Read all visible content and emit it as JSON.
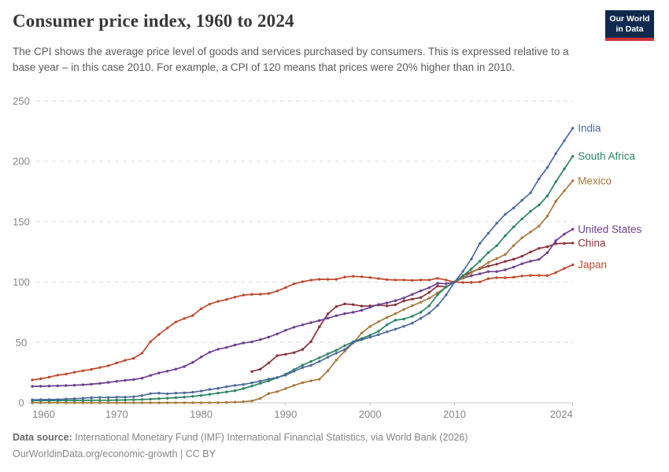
{
  "header": {
    "title": "Consumer price index, 1960 to 2024",
    "subtitle": "The CPI shows the average price level of goods and services purchased by consumers. This is expressed relative to a base year – in this case 2010. For example, a CPI of 120 means that prices were 20% higher than in 2010.",
    "logo": {
      "line1": "Our World",
      "line2": "in Data",
      "bg_color": "#102a4e",
      "accent_color": "#cf3235"
    }
  },
  "footer": {
    "source_label": "Data source:",
    "source_text": " International Monetary Fund (IMF) International Financial Statistics, via World Bank (2026)",
    "link_text": "OurWorldinData.org/economic-growth",
    "license_text": " | CC BY"
  },
  "chart_data": {
    "type": "line",
    "title": "Consumer price index, 1960 to 2024",
    "xlabel": "",
    "ylabel": "",
    "ylim": [
      0,
      250
    ],
    "yticks": [
      0,
      50,
      100,
      150,
      200,
      250
    ],
    "xticks": [
      1960,
      1970,
      1980,
      1990,
      2000,
      2010,
      2024
    ],
    "grid": "horizontal-dashed",
    "legend": "end-of-line-labels",
    "x_start": 1960,
    "x_end": 2024,
    "axis_color": "#c8c8c8",
    "grid_color": "#dcdcdc",
    "tick_label_color": "#858585",
    "series": [
      {
        "name": "India",
        "color": "#4C6A9C",
        "values": [
          2.5,
          2.6,
          2.65,
          2.7,
          3.1,
          3.4,
          3.8,
          4.25,
          4.4,
          4.35,
          4.6,
          4.7,
          5.0,
          5.9,
          7.6,
          8.0,
          7.4,
          8.0,
          8.2,
          8.7,
          9.7,
          11.0,
          11.9,
          13.3,
          14.4,
          15.2,
          16.5,
          17.9,
          19.6,
          21.0,
          22.9,
          26.1,
          29.2,
          31.0,
          34.2,
          37.7,
          41.1,
          44.1,
          49.9,
          52.2,
          54.3,
          56.4,
          58.8,
          61.0,
          63.3,
          66.0,
          69.9,
          74.3,
          80.5,
          89.3,
          100,
          108.9,
          119.1,
          132.0,
          140.4,
          148.7,
          156.1,
          161.3,
          167.7,
          173.9,
          185.4,
          194.9,
          206.4,
          217.0,
          227.4
        ]
      },
      {
        "name": "South Africa",
        "color": "#2C8465",
        "values": [
          1.7,
          1.73,
          1.76,
          1.78,
          1.82,
          1.89,
          1.96,
          2.03,
          2.07,
          2.11,
          2.2,
          2.32,
          2.47,
          2.71,
          3.02,
          3.43,
          3.81,
          4.24,
          4.71,
          5.33,
          6.07,
          7.0,
          8.0,
          9.0,
          10.0,
          11.7,
          13.8,
          16.1,
          18.1,
          20.8,
          23.7,
          27.4,
          31.2,
          34.2,
          37.3,
          40.5,
          43.5,
          47.3,
          50.5,
          53.2,
          56.0,
          59.2,
          64.6,
          68.4,
          69.3,
          71.7,
          75.0,
          80.3,
          89.5,
          95.9,
          100,
          105.0,
          110.9,
          117.3,
          124.4,
          130.1,
          138.3,
          145.6,
          152.3,
          158.6,
          163.8,
          171.3,
          183.0,
          193.8,
          204.1
        ]
      },
      {
        "name": "Mexico",
        "color": "#A9793D",
        "values": [
          0.012,
          0.012,
          0.012,
          0.012,
          0.013,
          0.013,
          0.014,
          0.014,
          0.014,
          0.015,
          0.016,
          0.017,
          0.018,
          0.02,
          0.025,
          0.029,
          0.034,
          0.044,
          0.052,
          0.061,
          0.078,
          0.099,
          0.158,
          0.319,
          0.528,
          0.833,
          1.55,
          3.6,
          7.7,
          9.24,
          11.7,
          14.4,
          16.6,
          18.2,
          19.5,
          26.4,
          35.4,
          42.7,
          49.5,
          57.7,
          63.2,
          67.2,
          70.6,
          73.8,
          77.3,
          80.4,
          83.3,
          86.6,
          91.0,
          95.8,
          100,
          103.4,
          107.7,
          111.7,
          116.2,
          119.4,
          122.8,
          130.2,
          136.6,
          141.5,
          146.3,
          154.6,
          166.8,
          175.6,
          183.9
        ]
      },
      {
        "name": "United States",
        "color": "#6D3E91",
        "values": [
          13.6,
          13.7,
          13.9,
          14.1,
          14.3,
          14.5,
          14.9,
          15.4,
          16.0,
          16.9,
          17.8,
          18.6,
          19.2,
          20.4,
          22.7,
          24.7,
          26.2,
          27.9,
          30.0,
          33.4,
          37.9,
          41.8,
          44.4,
          45.8,
          47.8,
          49.5,
          50.4,
          52.3,
          54.4,
          57.0,
          60.1,
          62.6,
          64.5,
          66.4,
          68.1,
          70.1,
          72.1,
          73.8,
          74.9,
          76.6,
          79.1,
          81.4,
          82.7,
          84.6,
          86.8,
          89.8,
          92.7,
          95.3,
          99.0,
          98.6,
          100,
          103.2,
          105.3,
          106.8,
          108.6,
          108.7,
          110.1,
          112.4,
          115.2,
          117.3,
          118.7,
          124.3,
          134.2,
          139.7,
          143.8
        ]
      },
      {
        "name": "China",
        "color": "#8B3039",
        "values": [
          null,
          null,
          null,
          null,
          null,
          null,
          null,
          null,
          null,
          null,
          null,
          null,
          null,
          null,
          null,
          null,
          null,
          null,
          null,
          null,
          null,
          null,
          null,
          null,
          null,
          null,
          25.9,
          27.8,
          33.0,
          39.0,
          40.2,
          41.6,
          44.2,
          50.7,
          62.9,
          73.6,
          79.7,
          81.9,
          81.3,
          80.1,
          80.3,
          80.9,
          80.3,
          81.2,
          84.4,
          85.9,
          87.2,
          91.4,
          96.7,
          96.0,
          100,
          105.4,
          108.2,
          111.0,
          113.2,
          114.8,
          117.1,
          118.9,
          121.4,
          124.9,
          127.9,
          129.2,
          131.8,
          132.0,
          132.3
        ]
      },
      {
        "name": "Japan",
        "color": "#BE4B2E",
        "values": [
          18.9,
          19.9,
          21.3,
          22.9,
          23.8,
          25.3,
          26.6,
          27.7,
          29.2,
          30.7,
          33.0,
          35.1,
          36.8,
          41.1,
          50.6,
          56.6,
          61.9,
          66.9,
          69.8,
          72.3,
          77.9,
          81.7,
          84.0,
          85.5,
          87.5,
          89.2,
          89.8,
          89.9,
          90.5,
          92.6,
          95.4,
          98.6,
          100.3,
          101.6,
          102.3,
          102.2,
          102.3,
          104.1,
          104.8,
          104.4,
          103.7,
          102.9,
          102.0,
          101.7,
          101.7,
          101.4,
          101.7,
          101.7,
          103.1,
          101.7,
          100,
          99.7,
          99.7,
          100.1,
          102.8,
          103.6,
          103.5,
          104.0,
          105.0,
          105.5,
          105.5,
          105.2,
          107.8,
          111.3,
          114.3
        ]
      }
    ]
  }
}
